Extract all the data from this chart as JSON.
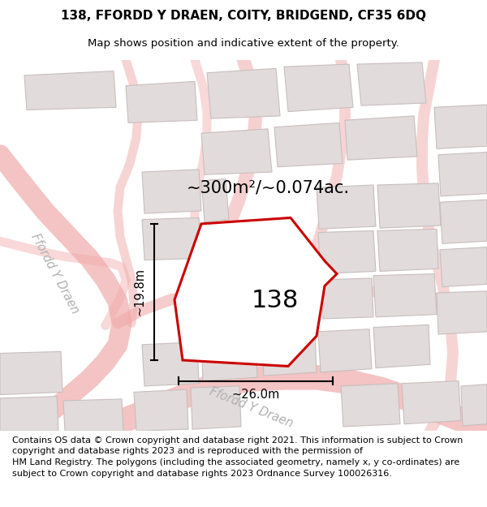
{
  "title_line1": "138, FFORDD Y DRAEN, COITY, BRIDGEND, CF35 6DQ",
  "title_line2": "Map shows position and indicative extent of the property.",
  "footer_text": "Contains OS data © Crown copyright and database right 2021. This information is subject to Crown copyright and database rights 2023 and is reproduced with the permission of\nHM Land Registry. The polygons (including the associated geometry, namely x, y\nco-ordinates) are subject to Crown copyright and database rights 2023 Ordnance Survey\n100026316.",
  "area_label": "~300m²/~0.074ac.",
  "property_number": "138",
  "dim_width": "~26.0m",
  "dim_height": "~19.8m",
  "road_label_ul": "Ffordd Y Draen",
  "road_label_lr": "Ffordd Y Draen",
  "bg_color": "#f0ecec",
  "title_bg": "#ffffff",
  "footer_bg": "#ffffff",
  "property_fill": "#ffffff",
  "property_stroke": "#cc0000",
  "building_fill": "#e2dbdb",
  "building_stroke": "#c8bebe",
  "road_color": "#f0aaaa",
  "dim_color": "#111111",
  "title_fontsize": 11,
  "subtitle_fontsize": 9.5,
  "footer_fontsize": 8.0,
  "number_fontsize": 22,
  "area_fontsize": 15,
  "road_fontsize": 10.5
}
